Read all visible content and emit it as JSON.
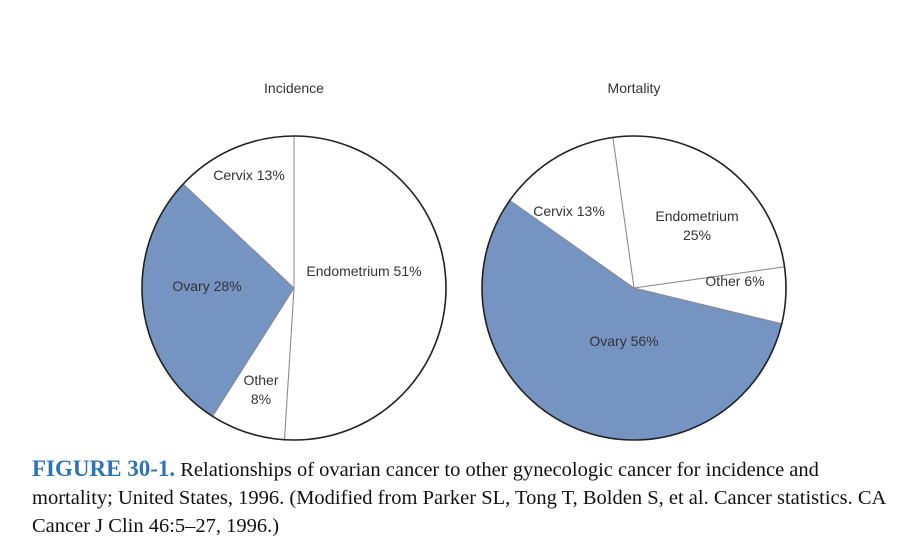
{
  "chart_data": [
    {
      "type": "pie",
      "title": "Incidence",
      "slices": [
        {
          "label_lines": [
            "Endometrium 51%"
          ],
          "value": 51,
          "color": "#ffffff"
        },
        {
          "label_lines": [
            "Other",
            "8%"
          ],
          "value": 8,
          "color": "#ffffff"
        },
        {
          "label_lines": [
            "Ovary 28%"
          ],
          "value": 28,
          "color": "#7594c2"
        },
        {
          "label_lines": [
            "Cervix 13%"
          ],
          "value": 13,
          "color": "#ffffff"
        }
      ]
    },
    {
      "type": "pie",
      "title": "Mortality",
      "slices": [
        {
          "label_lines": [
            "Endometrium",
            "25%"
          ],
          "value": 25,
          "color": "#ffffff"
        },
        {
          "label_lines": [
            "Other 6%"
          ],
          "value": 6,
          "color": "#ffffff"
        },
        {
          "label_lines": [
            "Ovary 56%"
          ],
          "value": 56,
          "color": "#7594c2"
        },
        {
          "label_lines": [
            "Cervix 13%"
          ],
          "value": 13,
          "color": "#ffffff"
        }
      ]
    }
  ],
  "caption": {
    "label": "FIGURE 30-1.",
    "text": " Relationships of ovarian cancer to other gynecologic cancer for incidence and mortality; United States, 1996. (Modified from Parker SL, Tong T, Bolden S, et al. Cancer statistics. CA Cancer J Clin 46:5–27, 1996.)"
  }
}
